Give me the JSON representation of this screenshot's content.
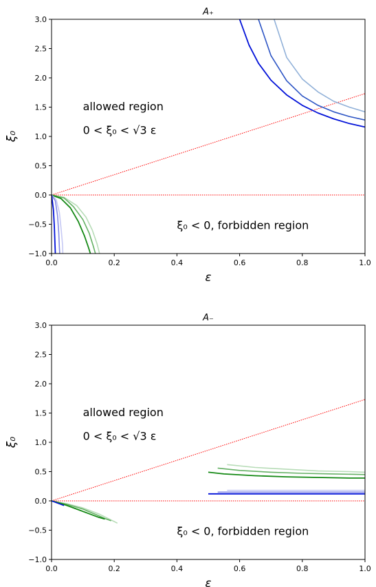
{
  "chart_data": [
    {
      "type": "line",
      "title": "A₊",
      "xlabel": "ε",
      "ylabel": "ξ₀",
      "xlim": [
        0.0,
        1.0
      ],
      "ylim": [
        -1.0,
        3.0
      ],
      "x_ticks": [
        "0.0",
        "0.2",
        "0.4",
        "0.6",
        "0.8",
        "1.0"
      ],
      "y_ticks": [
        "−1.0",
        "−0.5",
        "0.0",
        "0.5",
        "1.0",
        "1.5",
        "2.0",
        "2.5",
        "3.0"
      ],
      "grid": false,
      "annotations": {
        "allowed_label": "allowed region",
        "allowed_condition": "0 < ξ₀ < √3 ε",
        "forbidden_label": "ξ₀ < 0, forbidden region"
      },
      "reference_lines": [
        {
          "style": "dotted",
          "color": "#ff0000",
          "x": [
            0,
            1
          ],
          "y": [
            0,
            1.732
          ]
        },
        {
          "style": "dotted",
          "color": "#ff0000",
          "x": [
            0,
            1
          ],
          "y": [
            0,
            0
          ]
        }
      ],
      "series": [
        {
          "color": "#90b0d8",
          "width": 1.6,
          "x": [
            0.71,
            0.75,
            0.8,
            0.85,
            0.9,
            0.95,
            1.0
          ],
          "y": [
            3.0,
            2.35,
            1.98,
            1.76,
            1.6,
            1.5,
            1.42
          ]
        },
        {
          "color": "#2c54c4",
          "width": 1.6,
          "x": [
            0.66,
            0.7,
            0.75,
            0.8,
            0.85,
            0.9,
            0.95,
            1.0
          ],
          "y": [
            3.0,
            2.38,
            1.95,
            1.69,
            1.53,
            1.42,
            1.34,
            1.28
          ]
        },
        {
          "color": "#0010d8",
          "width": 1.8,
          "x": [
            0.6,
            0.63,
            0.66,
            0.7,
            0.75,
            0.8,
            0.85,
            0.9,
            0.95,
            1.0
          ],
          "y": [
            3.0,
            2.56,
            2.25,
            1.96,
            1.71,
            1.53,
            1.4,
            1.3,
            1.22,
            1.16
          ]
        },
        {
          "color": "#b7dcb7",
          "width": 1.6,
          "x": [
            0.0,
            0.04,
            0.08,
            0.11,
            0.13,
            0.145,
            0.153
          ],
          "y": [
            0.0,
            -0.04,
            -0.18,
            -0.38,
            -0.6,
            -0.83,
            -1.0
          ]
        },
        {
          "color": "#64b064",
          "width": 1.6,
          "x": [
            0.0,
            0.04,
            0.07,
            0.1,
            0.12,
            0.133,
            0.14
          ],
          "y": [
            0.0,
            -0.05,
            -0.2,
            -0.42,
            -0.65,
            -0.87,
            -1.0
          ]
        },
        {
          "color": "#138813",
          "width": 1.8,
          "x": [
            0.0,
            0.03,
            0.06,
            0.085,
            0.105,
            0.118,
            0.124
          ],
          "y": [
            0.0,
            -0.06,
            -0.22,
            -0.45,
            -0.7,
            -0.9,
            -1.0
          ]
        },
        {
          "color": "#c6c9f4",
          "width": 1.6,
          "x": [
            0.0,
            0.015,
            0.025,
            0.031,
            0.035,
            0.036
          ],
          "y": [
            0.0,
            -0.08,
            -0.3,
            -0.6,
            -0.85,
            -1.0
          ]
        },
        {
          "color": "#8288e6",
          "width": 1.6,
          "x": [
            0.0,
            0.012,
            0.019,
            0.023,
            0.025,
            0.026
          ],
          "y": [
            0.0,
            -0.1,
            -0.35,
            -0.65,
            -0.9,
            -1.0
          ]
        },
        {
          "color": "#0010d8",
          "width": 1.8,
          "x": [
            0.0,
            0.006,
            0.009,
            0.011,
            0.012
          ],
          "y": [
            0.0,
            -0.25,
            -0.55,
            -0.85,
            -1.0
          ]
        }
      ]
    },
    {
      "type": "line",
      "title": "A₋",
      "xlabel": "ε",
      "ylabel": "ξ₀",
      "xlim": [
        0.0,
        1.0
      ],
      "ylim": [
        -1.0,
        3.0
      ],
      "x_ticks": [
        "0.0",
        "0.2",
        "0.4",
        "0.6",
        "0.8",
        "1.0"
      ],
      "y_ticks": [
        "−1.0",
        "−0.5",
        "0.0",
        "0.5",
        "1.0",
        "1.5",
        "2.0",
        "2.5",
        "3.0"
      ],
      "grid": false,
      "annotations": {
        "allowed_label": "allowed region",
        "allowed_condition": "0 < ξ₀ < √3 ε",
        "forbidden_label": "ξ₀ < 0, forbidden region"
      },
      "reference_lines": [
        {
          "style": "dotted",
          "color": "#ff0000",
          "x": [
            0,
            1
          ],
          "y": [
            0,
            1.732
          ]
        },
        {
          "style": "dotted",
          "color": "#ff0000",
          "x": [
            0,
            1
          ],
          "y": [
            0,
            0
          ]
        }
      ],
      "series": [
        {
          "color": "#b7dcb7",
          "width": 1.6,
          "x": [
            0.56,
            0.65,
            0.75,
            0.85,
            0.95,
            1.0
          ],
          "y": [
            0.62,
            0.57,
            0.54,
            0.51,
            0.5,
            0.49
          ]
        },
        {
          "color": "#64b064",
          "width": 1.6,
          "x": [
            0.53,
            0.6,
            0.7,
            0.8,
            0.9,
            1.0
          ],
          "y": [
            0.56,
            0.52,
            0.49,
            0.47,
            0.46,
            0.45
          ]
        },
        {
          "color": "#138813",
          "width": 1.8,
          "x": [
            0.5,
            0.55,
            0.65,
            0.75,
            0.85,
            0.95,
            1.0
          ],
          "y": [
            0.49,
            0.46,
            0.43,
            0.41,
            0.4,
            0.39,
            0.39
          ]
        },
        {
          "color": "#c6c9f4",
          "width": 1.6,
          "x": [
            0.56,
            1.0
          ],
          "y": [
            0.18,
            0.18
          ]
        },
        {
          "color": "#8288e6",
          "width": 1.6,
          "x": [
            0.53,
            1.0
          ],
          "y": [
            0.15,
            0.15
          ]
        },
        {
          "color": "#0010d8",
          "width": 1.8,
          "x": [
            0.5,
            1.0
          ],
          "y": [
            0.12,
            0.12
          ]
        },
        {
          "color": "#b7dcb7",
          "width": 1.6,
          "x": [
            0.0,
            0.05,
            0.1,
            0.15,
            0.18,
            0.21
          ],
          "y": [
            0.0,
            -0.05,
            -0.12,
            -0.22,
            -0.3,
            -0.38
          ]
        },
        {
          "color": "#64b064",
          "width": 1.6,
          "x": [
            0.0,
            0.05,
            0.1,
            0.14,
            0.17,
            0.19
          ],
          "y": [
            0.0,
            -0.06,
            -0.14,
            -0.23,
            -0.3,
            -0.34
          ]
        },
        {
          "color": "#138813",
          "width": 1.8,
          "x": [
            0.0,
            0.04,
            0.08,
            0.12,
            0.15,
            0.17
          ],
          "y": [
            0.0,
            -0.06,
            -0.14,
            -0.22,
            -0.28,
            -0.31
          ]
        },
        {
          "color": "#0010d8",
          "width": 1.6,
          "x": [
            0.0,
            0.02,
            0.04
          ],
          "y": [
            0.0,
            -0.04,
            -0.08
          ]
        }
      ]
    }
  ]
}
